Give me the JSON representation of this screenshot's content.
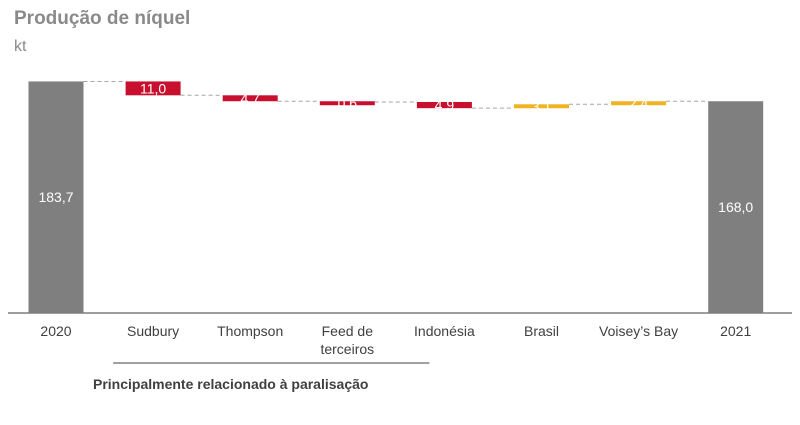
{
  "title": "Produção de níquel",
  "unit": "kt",
  "bracket_label": "Principalmente relacionado à paralisação",
  "colors": {
    "total": "#7f7f7f",
    "decrease": "#c8102e",
    "increase": "#f0b323",
    "axis": "#7f7f7f",
    "connector": "#a6a6a6"
  },
  "chart_data": {
    "type": "bar",
    "subtype": "waterfall",
    "title": "Produção de níquel",
    "ylabel": "kt",
    "categories": [
      "2020",
      "Sudbury",
      "Thompson",
      "Feed de terceiros",
      "Indonésia",
      "Brasil",
      "Voisey’s Bay",
      "2021"
    ],
    "category_lines": [
      [
        "2020"
      ],
      [
        "Sudbury"
      ],
      [
        "Thompson"
      ],
      [
        "Feed de",
        "terceiros"
      ],
      [
        "Indonésia"
      ],
      [
        "Brasil"
      ],
      [
        "Voisey’s Bay"
      ],
      [
        "2021"
      ]
    ],
    "values": [
      183.7,
      -11.0,
      -4.7,
      -0.6,
      -4.9,
      3.1,
      2.4,
      168.0
    ],
    "labels": [
      "183,7",
      "11,0",
      "4,7",
      "0,6",
      "4,9",
      "3,1",
      "2,4",
      "168,0"
    ],
    "kinds": [
      "total",
      "decrease",
      "decrease",
      "decrease",
      "decrease",
      "increase",
      "increase",
      "total"
    ],
    "bracket": {
      "from": "Sudbury",
      "to": "Indonésia",
      "label": "Principalmente relacionado à paralisação"
    }
  }
}
